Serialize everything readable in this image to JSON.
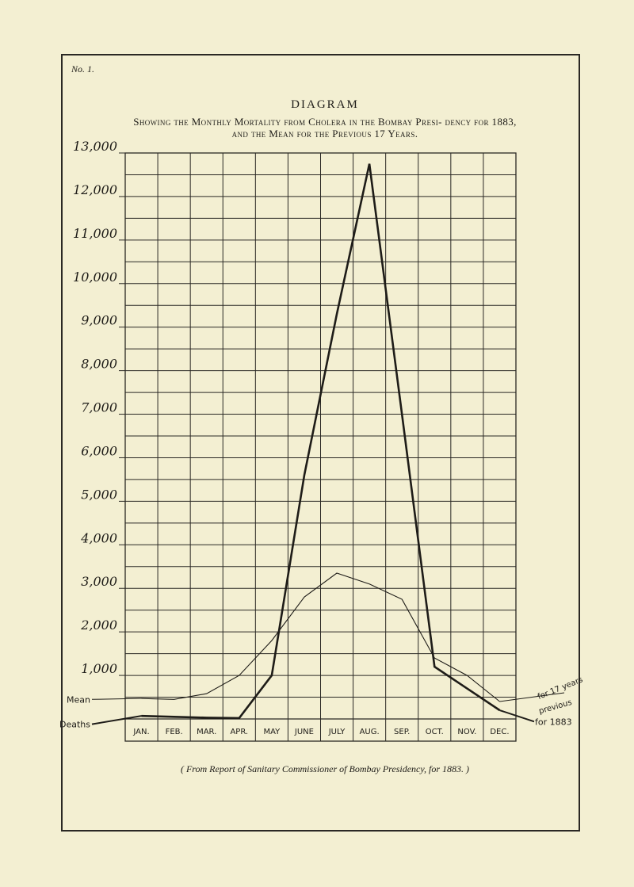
{
  "plate": {
    "number": "No. 1."
  },
  "header": {
    "title": "DIAGRAM",
    "subtitle": "Showing the Monthly Mortality from Cholera in the Bombay Presi- dency for 1883, and the Mean for the Previous 17 Years."
  },
  "footer": {
    "source": "( From Report of Sanitary Commissioner of Bombay Presidency, for 1883. )"
  },
  "chart_data": {
    "type": "line",
    "title": "DIAGRAM",
    "subtitle": "Showing the Monthly Mortality from Cholera in the Bombay Presidency for 1883, and the Mean for the Previous 17 Years.",
    "xlabel": "",
    "ylabel": "",
    "categories": [
      "JAN.",
      "FEB.",
      "MAR.",
      "APR.",
      "MAY",
      "JUNE",
      "JULY",
      "AUG.",
      "SEP.",
      "OCT.",
      "NOV.",
      "DEC."
    ],
    "ylim": [
      0,
      13000
    ],
    "yticks": [
      1000,
      2000,
      3000,
      4000,
      5000,
      6000,
      7000,
      8000,
      9000,
      10000,
      11000,
      12000,
      13000
    ],
    "ytick_labels": [
      "1,000",
      "2,000",
      "3,000",
      "4,000",
      "5,000",
      "6,000",
      "7,000",
      "8,000",
      "9,000",
      "10,000",
      "11,000",
      "12,000",
      "13,000"
    ],
    "grid": true,
    "series": [
      {
        "name": "for 1883",
        "values": [
          70,
          50,
          30,
          20,
          1000,
          5600,
          9300,
          12750,
          7000,
          1200,
          700,
          200
        ]
      },
      {
        "name": "for 17 years previous",
        "values": [
          470,
          450,
          580,
          1000,
          1800,
          2800,
          3350,
          3100,
          2750,
          1400,
          1000,
          400
        ]
      }
    ],
    "series_labels": {
      "left_mean": "Mean",
      "left_deaths": "Deaths",
      "right_mean_1": "for 17 years",
      "right_mean_2": "previous",
      "right_deaths": "for 1883"
    },
    "colors": {
      "line": "#1e1c18",
      "grid": "#2a2824",
      "paper": "#f3efd2"
    }
  }
}
